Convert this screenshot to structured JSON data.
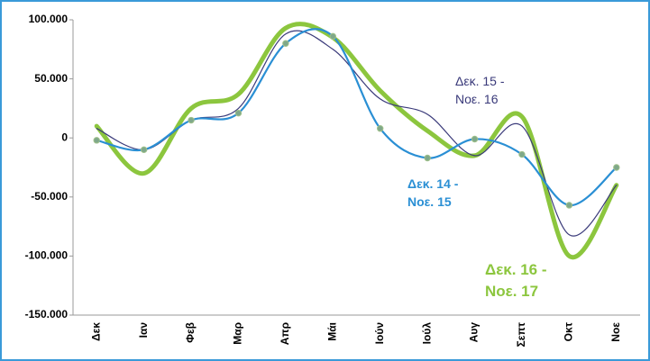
{
  "chart_data": {
    "type": "line",
    "categories": [
      "Δεκ",
      "Ιαν",
      "Φεβ",
      "Μαρ",
      "Απρ",
      "Μάι",
      "Ιούν",
      "Ιούλ",
      "Αυγ",
      "Σεπτ",
      "Οκτ",
      "Νοε"
    ],
    "series": [
      {
        "name": "Δεκ. 14 - Νοε. 15",
        "color": "#2a8fd4",
        "values": [
          -2000,
          -10000,
          15000,
          21000,
          80000,
          86000,
          8000,
          -17000,
          -1000,
          -14000,
          -57000,
          -25000
        ]
      },
      {
        "name": "Δεκ. 15 - Νοε. 16",
        "color": "#3a3a7a",
        "values": [
          8000,
          -10000,
          15000,
          25000,
          88000,
          75000,
          33000,
          20000,
          -15000,
          10000,
          -82000,
          -40000
        ]
      },
      {
        "name": "Δεκ. 16 - Νοε. 17",
        "color": "#8cc63e",
        "values": [
          10000,
          -30000,
          25000,
          37000,
          93000,
          85000,
          40000,
          6000,
          -15000,
          18000,
          -100000,
          -40000
        ]
      }
    ],
    "ylim": [
      -150000,
      100000
    ],
    "yticks": [
      {
        "value": 100000,
        "label": "100.000"
      },
      {
        "value": 50000,
        "label": "50.000"
      },
      0,
      {
        "value": -50000,
        "label": "-50.000"
      },
      {
        "value": -100000,
        "label": "-100.000"
      },
      {
        "value": -150000,
        "label": "-150.000"
      }
    ]
  }
}
